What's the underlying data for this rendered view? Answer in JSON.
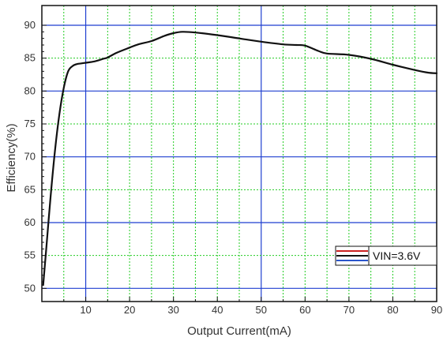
{
  "chart_data": {
    "type": "line",
    "title": "",
    "xlabel": "Output Current(mA)",
    "ylabel": "Efficiency(%)",
    "xlim": [
      0,
      90
    ],
    "ylim": [
      48,
      93
    ],
    "x_major_ticks": [
      10,
      20,
      30,
      40,
      50,
      60,
      70,
      80,
      90
    ],
    "x_minor_step": 5,
    "y_major_ticks": [
      50,
      55,
      60,
      65,
      70,
      75,
      80,
      85,
      90
    ],
    "y_blue_gridlines": [
      50,
      60,
      70,
      80,
      90
    ],
    "y_green_gridlines": [
      55,
      65,
      75,
      85
    ],
    "grid": true,
    "legend_position": "bottom-right",
    "colors": {
      "line": "#111111",
      "grid_major": "#1f3fd0",
      "grid_minor": "#22cc22",
      "legend_swatch_top": "#cc2222",
      "legend_swatch_bottom": "#2a55cc"
    },
    "series": [
      {
        "name": "VIN=3.6V",
        "x": [
          0.3,
          1,
          2,
          3,
          4,
          5,
          6,
          7,
          8,
          9,
          10,
          12,
          14,
          15,
          17,
          20,
          22,
          25,
          28,
          30,
          32,
          35,
          40,
          45,
          50,
          55,
          58,
          60,
          63,
          65,
          70,
          75,
          80,
          85,
          88,
          90
        ],
        "y": [
          50.5,
          56,
          64,
          71,
          76.5,
          80.5,
          83,
          83.8,
          84.1,
          84.2,
          84.3,
          84.5,
          84.9,
          85.1,
          85.8,
          86.6,
          87.1,
          87.6,
          88.4,
          88.8,
          89.0,
          88.9,
          88.5,
          88.0,
          87.5,
          87.1,
          87.0,
          86.9,
          86.1,
          85.7,
          85.5,
          84.9,
          84.0,
          83.2,
          82.8,
          82.7
        ]
      }
    ]
  }
}
